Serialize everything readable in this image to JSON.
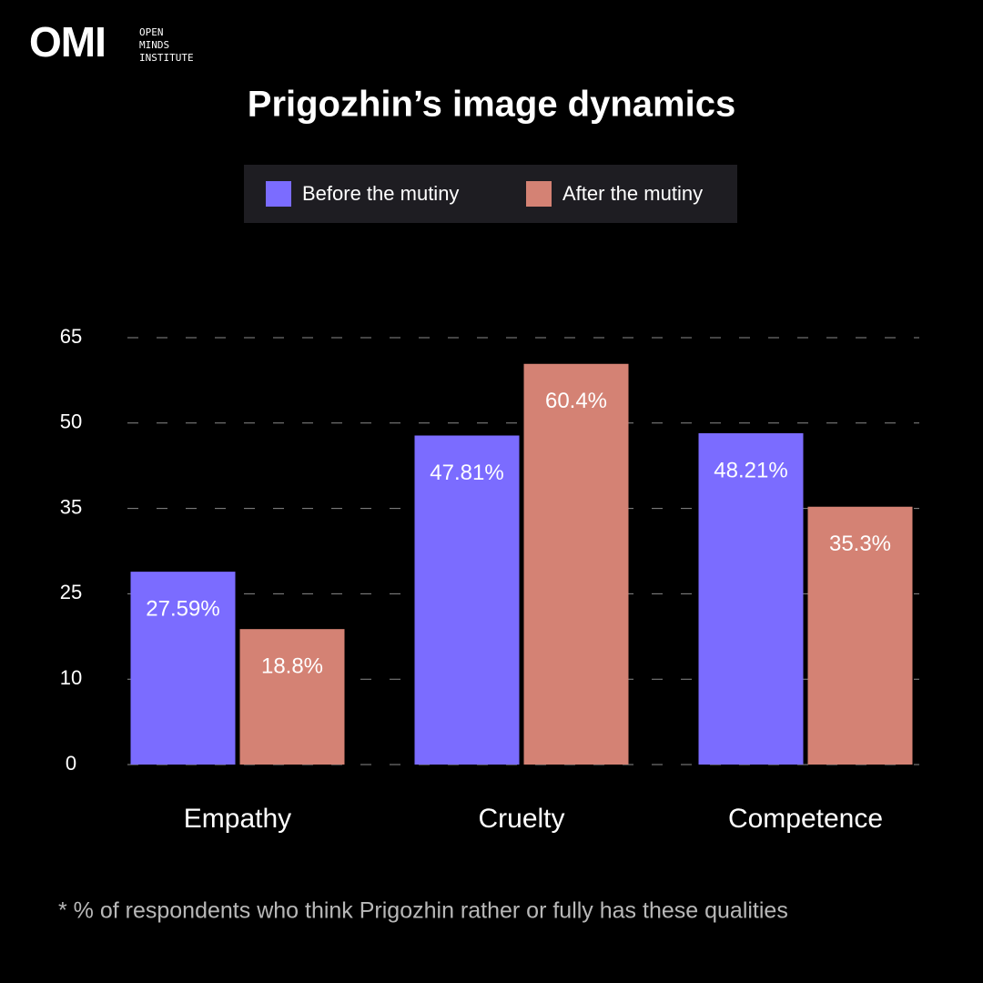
{
  "logo": {
    "mark": "OMI",
    "lines": [
      "OPEN",
      "MINDS",
      "INSTITUTE"
    ]
  },
  "chart_data": {
    "type": "bar",
    "title": "Prigozhin’s image dynamics",
    "categories": [
      "Empathy",
      "Cruelty",
      "Competence"
    ],
    "series": [
      {
        "name": "Before the mutiny",
        "color": "#7b6cff",
        "values": [
          27.59,
          47.81,
          48.21
        ],
        "value_labels": [
          "27.59%",
          "47.81%",
          "48.21%"
        ]
      },
      {
        "name": "After the mutiny",
        "color": "#d48274",
        "values": [
          18.8,
          60.4,
          35.3
        ],
        "value_labels": [
          "18.8%",
          "60.4%",
          "35.3%"
        ]
      }
    ],
    "ylim": [
      0,
      65
    ],
    "yticks": [
      0,
      10,
      25,
      35,
      50,
      65
    ],
    "grid": true,
    "legend": "top",
    "footnote": "* % of respondents who think Prigozhin rather or fully has these qualities"
  }
}
